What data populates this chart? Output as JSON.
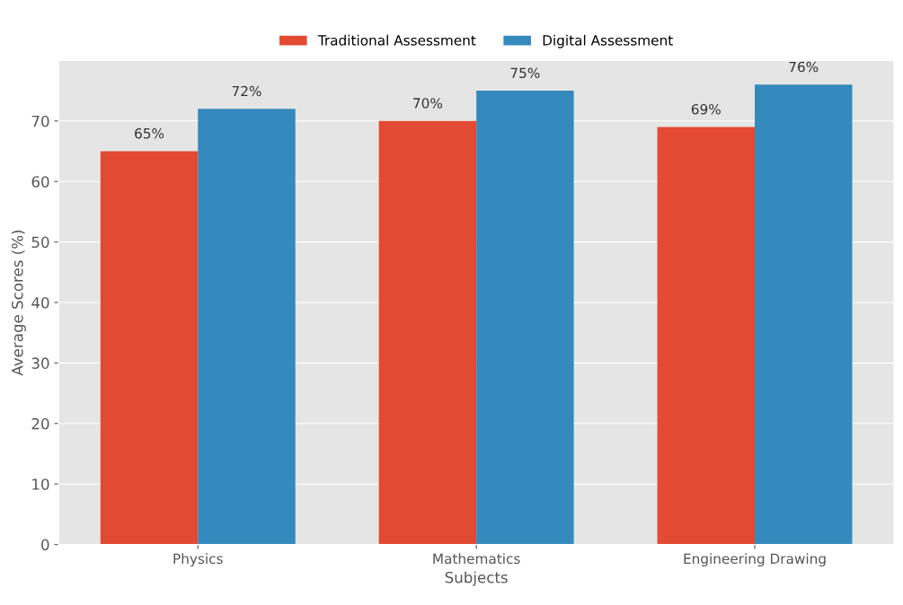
{
  "chart_data": {
    "type": "bar",
    "xlabel": "Subjects",
    "ylabel": "Average Scores (%)",
    "categories": [
      "Physics",
      "Mathematics",
      "Engineering Drawing"
    ],
    "series": [
      {
        "name": "Traditional Assessment",
        "color": "#e24a33",
        "values": [
          65,
          70,
          69
        ],
        "value_labels": [
          "65%",
          "70%",
          "69%"
        ]
      },
      {
        "name": "Digital Assessment",
        "color": "#348abd",
        "values": [
          72,
          75,
          76
        ],
        "value_labels": [
          "72%",
          "75%",
          "76%"
        ]
      }
    ],
    "ylim": [
      0,
      80
    ],
    "yticks": [
      0,
      10,
      20,
      30,
      40,
      50,
      60,
      70
    ],
    "grid": "y",
    "legend": "top"
  }
}
